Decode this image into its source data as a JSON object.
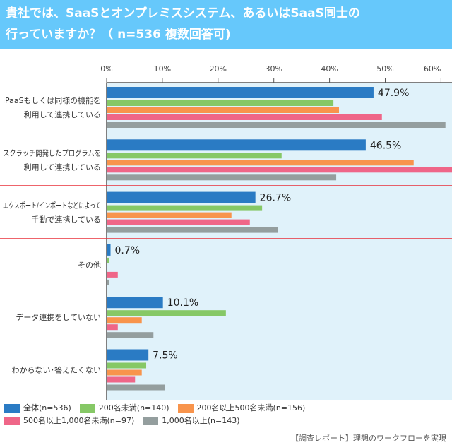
{
  "header": {
    "title_line1": "貴社では、SaaSとオンプレミスシステム、あるいはSaaS同士の",
    "title_line2": "行っていますか？（ n=536 複数回答可)"
  },
  "chart_data": {
    "type": "bar",
    "orientation": "horizontal",
    "xlim": [
      0,
      60
    ],
    "ticks": [
      "0%",
      "10%",
      "20%",
      "30%",
      "40%",
      "50%",
      "60%"
    ],
    "tick_values": [
      0,
      10,
      20,
      30,
      40,
      50,
      60
    ],
    "categories": [
      [
        "iPaaSもしくは同様の機能を",
        "利用して連携している"
      ],
      [
        "スクラッチ開発したプログラムを",
        "利用して連携している"
      ],
      [
        "エクスポート/インポートなどによって",
        "手動で連携している"
      ],
      [
        "その他"
      ],
      [
        "データ連携をしていない"
      ],
      [
        "わからない･答えたくない"
      ]
    ],
    "series": [
      {
        "name": "全体(n=536)",
        "color": "#2a7bc4",
        "values": [
          47.9,
          46.5,
          26.7,
          0.7,
          10.1,
          7.5
        ]
      },
      {
        "name": "200名未満(n=140)",
        "color": "#86c866",
        "values": [
          40.7,
          31.4,
          27.9,
          0.5,
          21.4,
          7.1
        ]
      },
      {
        "name": "200名以上500名未満(n=156)",
        "color": "#f8944c",
        "values": [
          41.7,
          55.1,
          22.4,
          0.0,
          6.3,
          6.3
        ]
      },
      {
        "name": "500名以上1,000名未満(n=97)",
        "color": "#ef6688",
        "values": [
          49.4,
          62.9,
          25.7,
          2.0,
          2.0,
          5.1
        ]
      },
      {
        "name": "1,000名以上(n=143)",
        "color": "#949e9e",
        "values": [
          60.8,
          41.2,
          30.7,
          0.5,
          8.4,
          10.4
        ]
      }
    ],
    "data_labels": [
      "47.9%",
      "46.5%",
      "26.7%",
      "0.7%",
      "10.1%",
      "7.5%"
    ],
    "highlight_lines_color": "#e8303a",
    "plot_background": "#e0f2fa"
  },
  "legend_position": "bottom",
  "footer": "【調査レポート】理想のワークフローを実現"
}
